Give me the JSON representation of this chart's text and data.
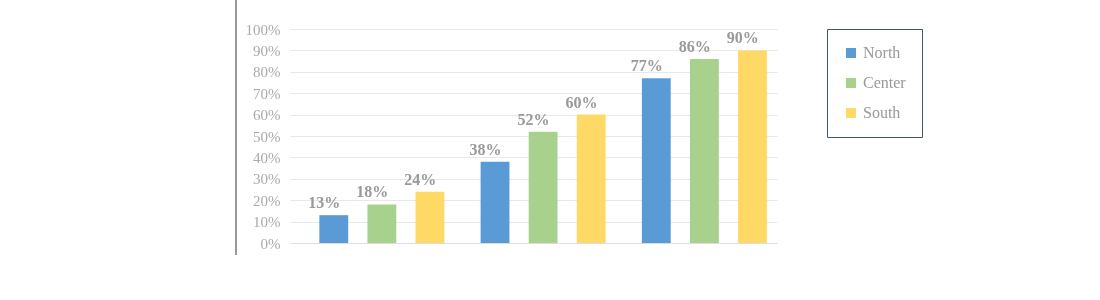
{
  "chart_data": {
    "type": "bar",
    "categories": [
      null,
      null,
      null
    ],
    "series": [
      {
        "name": "North",
        "color": "#5b9bd5",
        "values": [
          13,
          38,
          77
        ],
        "value_labels": [
          "13%",
          "38%",
          "77%"
        ]
      },
      {
        "name": "Center",
        "color": "#a9d18e",
        "values": [
          18,
          52,
          86
        ],
        "value_labels": [
          "18%",
          "52%",
          "86%"
        ]
      },
      {
        "name": "South",
        "color": "#ffd966",
        "values": [
          24,
          60,
          90
        ],
        "value_labels": [
          "24%",
          "60%",
          "90%"
        ]
      }
    ],
    "ylim": [
      0,
      100
    ],
    "yticks": [
      {
        "value": 0,
        "label": "0%"
      },
      {
        "value": 10,
        "label": "10%"
      },
      {
        "value": 20,
        "label": "20%"
      },
      {
        "value": 30,
        "label": "30%"
      },
      {
        "value": 40,
        "label": "40%"
      },
      {
        "value": 50,
        "label": "50%"
      },
      {
        "value": 60,
        "label": "60%"
      },
      {
        "value": 70,
        "label": "70%"
      },
      {
        "value": 80,
        "label": "80%"
      },
      {
        "value": 90,
        "label": "90%"
      },
      {
        "value": 100,
        "label": "100%"
      }
    ],
    "grid": "y",
    "legend": "top right"
  }
}
